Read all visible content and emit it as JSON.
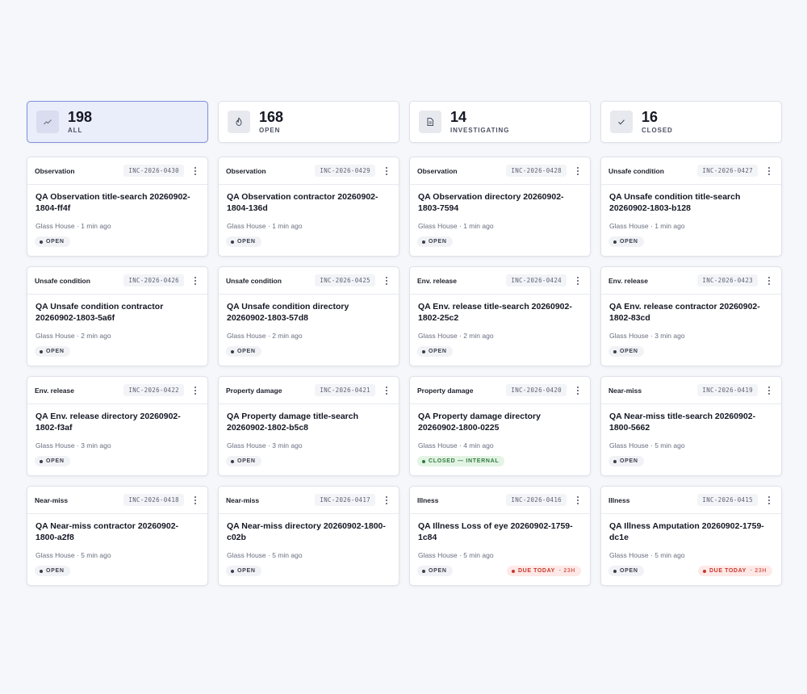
{
  "stats": [
    {
      "value": "198",
      "label": "ALL",
      "icon": "trend-chart-icon",
      "active": true
    },
    {
      "value": "168",
      "label": "OPEN",
      "icon": "flame-icon",
      "active": false
    },
    {
      "value": "14",
      "label": "INVESTIGATING",
      "icon": "document-icon",
      "active": false
    },
    {
      "value": "16",
      "label": "CLOSED",
      "icon": "check-icon",
      "active": false
    }
  ],
  "incidents": [
    {
      "category": "Observation",
      "id": "INC-2026-0430",
      "title": "QA Observation title-search 20260902-1804-ff4f",
      "meta": "Glass House · 1 min ago",
      "status": "OPEN",
      "status_kind": "open"
    },
    {
      "category": "Observation",
      "id": "INC-2026-0429",
      "title": "QA Observation contractor 20260902-1804-136d",
      "meta": "Glass House · 1 min ago",
      "status": "OPEN",
      "status_kind": "open"
    },
    {
      "category": "Observation",
      "id": "INC-2026-0428",
      "title": "QA Observation directory 20260902-1803-7594",
      "meta": "Glass House · 1 min ago",
      "status": "OPEN",
      "status_kind": "open"
    },
    {
      "category": "Unsafe condition",
      "id": "INC-2026-0427",
      "title": "QA Unsafe condition title-search 20260902-1803-b128",
      "meta": "Glass House · 1 min ago",
      "status": "OPEN",
      "status_kind": "open"
    },
    {
      "category": "Unsafe condition",
      "id": "INC-2026-0426",
      "title": "QA Unsafe condition contractor 20260902-1803-5a6f",
      "meta": "Glass House · 2 min ago",
      "status": "OPEN",
      "status_kind": "open"
    },
    {
      "category": "Unsafe condition",
      "id": "INC-2026-0425",
      "title": "QA Unsafe condition directory 20260902-1803-57d8",
      "meta": "Glass House · 2 min ago",
      "status": "OPEN",
      "status_kind": "open"
    },
    {
      "category": "Env. release",
      "id": "INC-2026-0424",
      "title": "QA Env. release title-search 20260902-1802-25c2",
      "meta": "Glass House · 2 min ago",
      "status": "OPEN",
      "status_kind": "open"
    },
    {
      "category": "Env. release",
      "id": "INC-2026-0423",
      "title": "QA Env. release contractor 20260902-1802-83cd",
      "meta": "Glass House · 3 min ago",
      "status": "OPEN",
      "status_kind": "open"
    },
    {
      "category": "Env. release",
      "id": "INC-2026-0422",
      "title": "QA Env. release directory 20260902-1802-f3af",
      "meta": "Glass House · 3 min ago",
      "status": "OPEN",
      "status_kind": "open"
    },
    {
      "category": "Property damage",
      "id": "INC-2026-0421",
      "title": "QA Property damage title-search 20260902-1802-b5c8",
      "meta": "Glass House · 3 min ago",
      "status": "OPEN",
      "status_kind": "open"
    },
    {
      "category": "Property damage",
      "id": "INC-2026-0420",
      "title": "QA Property damage directory 20260902-1800-0225",
      "meta": "Glass House · 4 min ago",
      "status": "CLOSED — INTERNAL",
      "status_kind": "closed"
    },
    {
      "category": "Near-miss",
      "id": "INC-2026-0419",
      "title": "QA Near-miss title-search 20260902-1800-5662",
      "meta": "Glass House · 5 min ago",
      "status": "OPEN",
      "status_kind": "open"
    },
    {
      "category": "Near-miss",
      "id": "INC-2026-0418",
      "title": "QA Near-miss contractor 20260902-1800-a2f8",
      "meta": "Glass House · 5 min ago",
      "status": "OPEN",
      "status_kind": "open"
    },
    {
      "category": "Near-miss",
      "id": "INC-2026-0417",
      "title": "QA Near-miss directory 20260902-1800-c02b",
      "meta": "Glass House · 5 min ago",
      "status": "OPEN",
      "status_kind": "open"
    },
    {
      "category": "Illness",
      "id": "INC-2026-0416",
      "title": "QA Illness Loss of eye 20260902-1759-1c84",
      "meta": "Glass House · 5 min ago",
      "status": "OPEN",
      "status_kind": "open",
      "due": "DUE TODAY",
      "due_hours": "· 23H"
    },
    {
      "category": "Illness",
      "id": "INC-2026-0415",
      "title": "QA Illness Amputation 20260902-1759-dc1e",
      "meta": "Glass House · 5 min ago",
      "status": "OPEN",
      "status_kind": "open",
      "due": "DUE TODAY",
      "due_hours": "· 23H"
    }
  ]
}
